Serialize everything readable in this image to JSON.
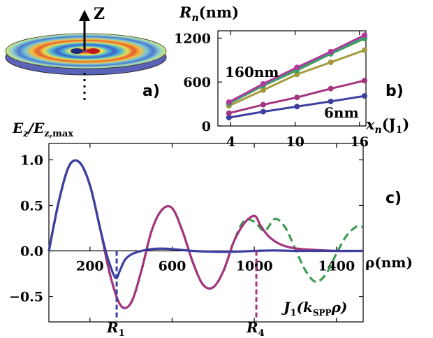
{
  "panel_labels": {
    "a": "a)",
    "b": "b)",
    "c": "c)"
  },
  "disk": {
    "axis_label": "Z"
  },
  "colors": {
    "blue": "#3b3fa0",
    "purple": "#a3347e",
    "green": "#3e9c52",
    "olive": "#a59a3e",
    "teal": "#2ea79a",
    "magenta": "#b03a96"
  },
  "chart_data": [
    {
      "id": "b",
      "type": "line",
      "ylabel_main": "R",
      "ylabel_sub": "n",
      "ylabel_unit": "(nm)",
      "xlabel_main": "x",
      "xlabel_sub": "n",
      "xlabel_arg": "(J",
      "xlabel_arg_sub": "1",
      "xlabel_close": ")",
      "xlim": [
        2.8,
        16.6
      ],
      "ylim": [
        0,
        1300
      ],
      "xticks": [
        4,
        10,
        16
      ],
      "yticks": [
        0,
        600,
        1200
      ],
      "annotations": {
        "top": "160nm",
        "bottom": "6nm"
      },
      "x": [
        3.83,
        7.02,
        10.17,
        13.32,
        16.47
      ],
      "series": [
        {
          "color": "#3b3fa0",
          "values": [
            115,
            195,
            265,
            335,
            410
          ]
        },
        {
          "color": "#a3347e",
          "values": [
            175,
            290,
            390,
            510,
            620
          ]
        },
        {
          "color": "#a59a3e",
          "values": [
            275,
            490,
            705,
            870,
            1035
          ]
        },
        {
          "color": "#3e9c52",
          "values": [
            305,
            550,
            760,
            985,
            1195
          ]
        },
        {
          "color": "#2ea79a",
          "values": [
            315,
            565,
            790,
            1005,
            1225
          ]
        },
        {
          "color": "#b03a96",
          "values": [
            325,
            575,
            800,
            1015,
            1240
          ]
        }
      ]
    },
    {
      "id": "c",
      "type": "line",
      "ylabel_main": "E",
      "ylabel_sub": "z",
      "ylabel_div": "/E",
      "ylabel_sub2": "z,max",
      "xlabel": "ρ(nm)",
      "xlim": [
        0,
        1530
      ],
      "ylim": [
        -0.78,
        1.18
      ],
      "xticks": [
        200,
        600,
        1000,
        1400
      ],
      "yticks": [
        1.0,
        0.5,
        0.0,
        -0.5
      ],
      "ytick_labels": [
        "1.0",
        "0.5",
        "0.0",
        "−0.5"
      ],
      "markers": [
        {
          "x": 330,
          "label": "R",
          "sub": "1",
          "color": "#3b3fa0"
        },
        {
          "x": 1010,
          "label": "R",
          "sub": "4",
          "color": "#a3347e"
        }
      ],
      "legend_text": {
        "main": "J",
        "sub": "1",
        "arg": "(k",
        "sub2": "SPP",
        "tail": "ρ)"
      },
      "series": [
        {
          "style": "dashed",
          "color": "#3e9c52",
          "x": [
            0,
            50,
            100,
            150,
            200,
            250,
            300,
            350,
            400,
            450,
            500,
            550,
            600,
            650,
            700,
            750,
            800,
            850,
            900,
            950,
            1000,
            1050,
            1100,
            1150,
            1200,
            1250,
            1300,
            1350,
            1400,
            1450,
            1500,
            1530
          ],
          "y": [
            0.0,
            0.56,
            0.94,
            0.97,
            0.72,
            0.24,
            -0.28,
            -0.6,
            -0.57,
            -0.22,
            0.22,
            0.45,
            0.47,
            0.22,
            -0.12,
            -0.37,
            -0.4,
            -0.22,
            0.1,
            0.33,
            0.32,
            0.22,
            0.35,
            0.26,
            0.02,
            -0.22,
            -0.34,
            -0.25,
            -0.03,
            0.17,
            0.27,
            0.26
          ]
        },
        {
          "style": "solid",
          "color": "#a3347e",
          "x": [
            0,
            50,
            100,
            150,
            200,
            250,
            300,
            350,
            400,
            450,
            500,
            550,
            600,
            650,
            700,
            750,
            800,
            850,
            900,
            950,
            990,
            1010,
            1030,
            1070,
            1120,
            1170,
            1230,
            1300,
            1400,
            1530
          ],
          "y": [
            0.0,
            0.56,
            0.94,
            0.97,
            0.72,
            0.24,
            -0.28,
            -0.6,
            -0.57,
            -0.22,
            0.22,
            0.45,
            0.47,
            0.22,
            -0.12,
            -0.37,
            -0.4,
            -0.22,
            0.1,
            0.3,
            0.38,
            0.37,
            0.28,
            0.16,
            0.08,
            0.04,
            0.02,
            0.01,
            0.0,
            0.0
          ]
        },
        {
          "style": "solid",
          "color": "#3b3fa0",
          "x": [
            0,
            50,
            100,
            150,
            200,
            250,
            280,
            300,
            315,
            330,
            345,
            370,
            400,
            450,
            500,
            550,
            600,
            700,
            800,
            900,
            1000,
            1100,
            1200,
            1300,
            1400,
            1530
          ],
          "y": [
            0.0,
            0.56,
            0.94,
            0.97,
            0.72,
            0.24,
            -0.03,
            -0.17,
            -0.26,
            -0.3,
            -0.22,
            -0.1,
            -0.04,
            0.0,
            0.02,
            0.025,
            0.02,
            0.0,
            -0.01,
            -0.01,
            0.0,
            0.005,
            0.0,
            0.0,
            0.0,
            0.0
          ]
        }
      ]
    }
  ]
}
